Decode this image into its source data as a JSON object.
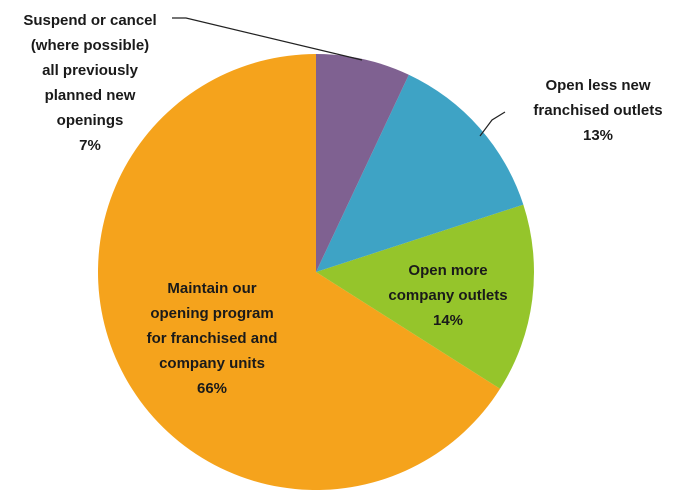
{
  "chart_data": {
    "type": "pie",
    "categories": [
      "Suspend or cancel\n(where possible)\nall previously\nplanned new\nopenings",
      "Open less new\nfranchised outlets",
      "Open more\ncompany outlets",
      "Maintain our\nopening program\nfor franchised and\ncompany units"
    ],
    "values": [
      7,
      13,
      14,
      66
    ],
    "value_labels": [
      "7%",
      "13%",
      "14%",
      "66%"
    ],
    "colors": [
      "#7f6191",
      "#3ea3c5",
      "#95c52b",
      "#f5a31c"
    ]
  }
}
